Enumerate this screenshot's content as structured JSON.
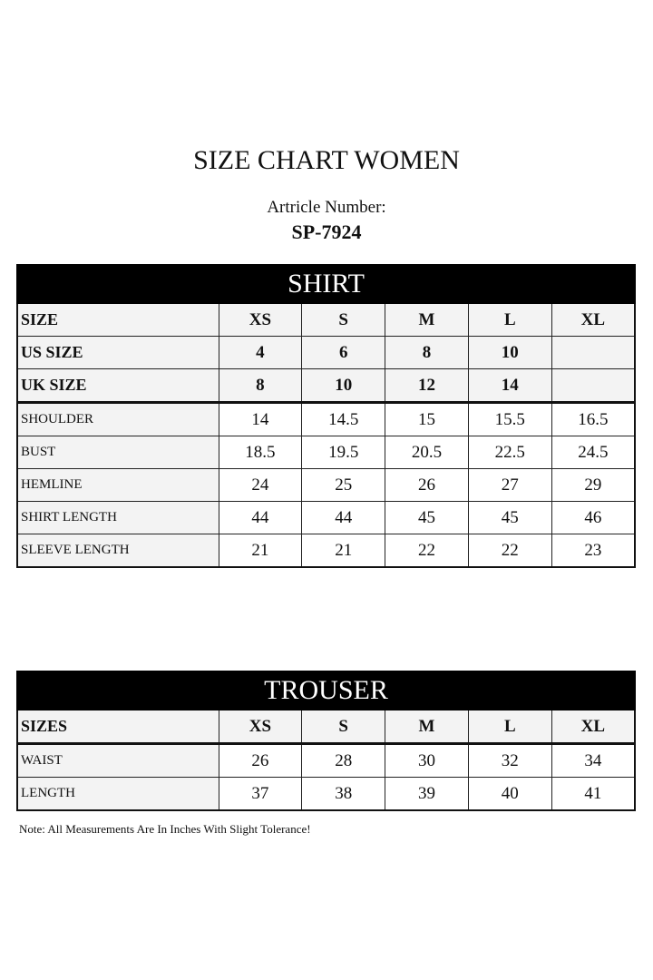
{
  "title": "SIZE CHART WOMEN",
  "article_label": "Artricle Number:",
  "article_number": "SP-7924",
  "shirt": {
    "heading": "SHIRT",
    "header_rows": [
      [
        "SIZE",
        "XS",
        "S",
        "M",
        "L",
        "XL"
      ],
      [
        "US SIZE",
        "4",
        "6",
        "8",
        "10",
        ""
      ],
      [
        "UK SIZE",
        "8",
        "10",
        "12",
        "14",
        ""
      ]
    ],
    "rows": [
      [
        "SHOULDER",
        "14",
        "14.5",
        "15",
        "15.5",
        "16.5"
      ],
      [
        "BUST",
        "18.5",
        "19.5",
        "20.5",
        "22.5",
        "24.5"
      ],
      [
        "HEMLINE",
        "24",
        "25",
        "26",
        "27",
        "29"
      ],
      [
        "SHIRT LENGTH",
        "44",
        "44",
        "45",
        "45",
        "46"
      ],
      [
        "SLEEVE LENGTH",
        "21",
        "21",
        "22",
        "22",
        "23"
      ]
    ]
  },
  "trouser": {
    "heading": "TROUSER",
    "header_rows": [
      [
        "SIZES",
        "XS",
        "S",
        "M",
        "L",
        "XL"
      ]
    ],
    "rows": [
      [
        "WAIST",
        "26",
        "28",
        "30",
        "32",
        "34"
      ],
      [
        "LENGTH",
        "37",
        "38",
        "39",
        "40",
        "41"
      ]
    ]
  },
  "note": "Note: All Measurements Are In Inches With Slight Tolerance!"
}
